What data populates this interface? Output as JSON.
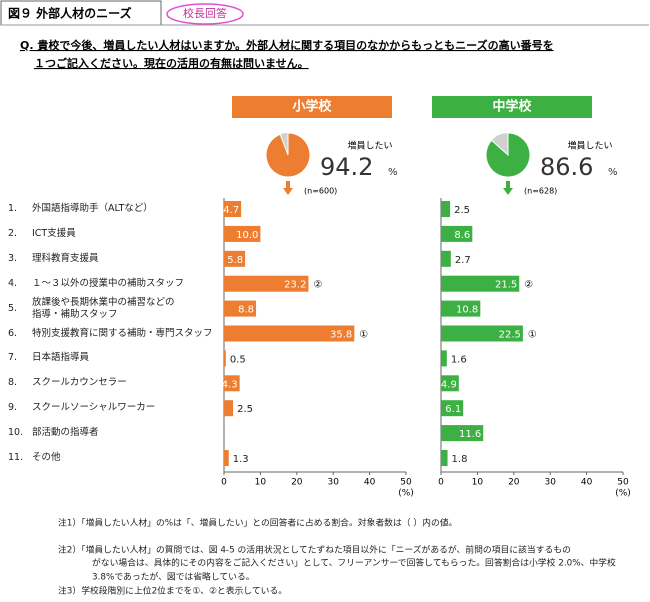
{
  "header": {
    "title": "図９ 外部人材のニーズ",
    "badge": "校長回答"
  },
  "question": [
    "Q. 貴校で今後、増員したい人材はいますか。外部人材に関する項目のなかからもっともニーズの高い番号を",
    "１つご記入ください。現在の活用の有無は問いません。"
  ],
  "chart_data": [
    {
      "type": "bar",
      "title": "小学校",
      "color": "#ed7d31",
      "pie_label": "増員したい",
      "pie_value": 94.2,
      "pie_unit": "%",
      "n_label": "(n=600)",
      "category_numbers": [
        "1.",
        "2.",
        "3.",
        "4.",
        "5.",
        "6.",
        "7.",
        "8.",
        "9.",
        "10.",
        "11."
      ],
      "categories": [
        "外国語指導助手（ALTなど）",
        "ICT支援員",
        "理科教育支援員",
        "１～３以外の授業中の補助スタッフ",
        "放課後や長期休業中の補習などの\n指導・補助スタッフ",
        "特別支援教育に関する補助・専門スタッフ",
        "日本語指導員",
        "スクールカウンセラー",
        "スクールソーシャルワーカー",
        "部活動の指導者",
        "その他"
      ],
      "values": [
        4.7,
        10.0,
        5.8,
        23.2,
        8.8,
        35.8,
        0.5,
        4.3,
        2.5,
        null,
        1.3
      ],
      "value_labels": [
        "4.7",
        "10.0",
        "5.8",
        "23.2",
        "8.8",
        "35.8",
        "0.5",
        "4.3",
        "2.5",
        null,
        "1.3"
      ],
      "rank_labels": [
        null,
        null,
        null,
        "②",
        null,
        "①",
        null,
        null,
        null,
        null,
        null
      ],
      "xlim": [
        0,
        50
      ],
      "xticks": [
        0,
        10,
        20,
        30,
        40,
        50
      ],
      "x_unit": "(%)"
    },
    {
      "type": "bar",
      "title": "中学校",
      "color": "#3cb043",
      "pie_label": "増員したい",
      "pie_value": 86.6,
      "pie_unit": "%",
      "n_label": "(n=628)",
      "values": [
        2.5,
        8.6,
        2.7,
        21.5,
        10.8,
        22.5,
        1.6,
        4.9,
        6.1,
        11.6,
        1.8
      ],
      "rank_labels": [
        null,
        null,
        null,
        "②",
        null,
        "①",
        null,
        null,
        null,
        null,
        null
      ],
      "xlim": [
        0,
        50
      ],
      "xticks": [
        0,
        10,
        20,
        30,
        40,
        50
      ],
      "x_unit": "(%)"
    }
  ],
  "notes": [
    "注1）「増員したい人材」の%は「、増員したい」との回答者に占める割合。対象者数は（ ）内の値。",
    "注2）「増員したい人材」の質問では、図 4-5 の活用状況としてたずねた項目以外に「ニーズがあるが、前問の項目に該当するもの",
    "がない場合は、具体的にその内容をご記入ください」として、フリーアンサーで回答してもらった。回答割合は小学校 2.0%、中学校",
    "3.8%であったが、図では省略している。",
    "注3）学校段階別に上位2位までを①、②と表示している。"
  ]
}
